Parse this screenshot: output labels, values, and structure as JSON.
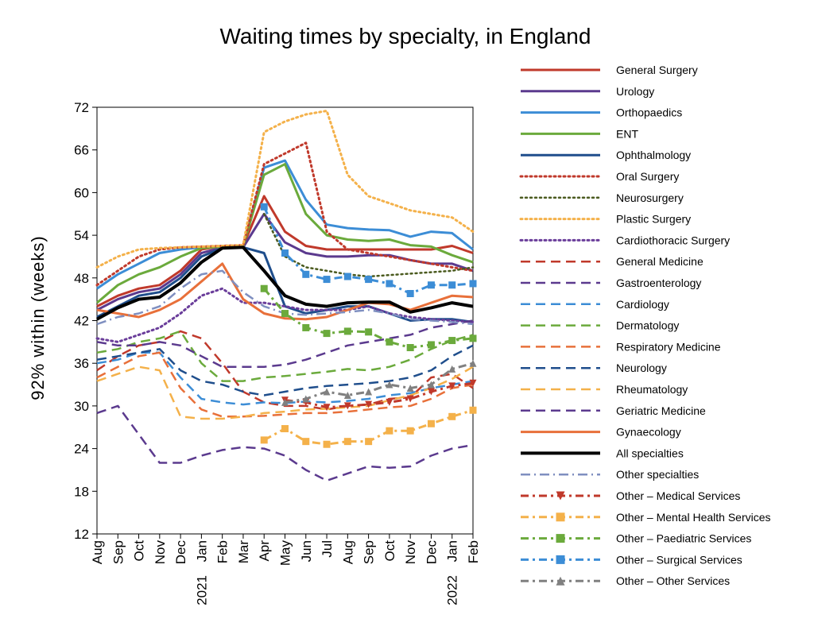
{
  "chart_data": {
    "type": "line",
    "title": "Waiting times by specialty, in England",
    "ylabel": "92% within (weeks)",
    "xlabel": "",
    "ylim": [
      12,
      72
    ],
    "yticks": [
      12,
      18,
      24,
      30,
      36,
      42,
      48,
      54,
      60,
      66,
      72
    ],
    "categories": [
      "Aug",
      "Sep",
      "Oct",
      "Nov",
      "Dec",
      "Jan",
      "Feb",
      "Mar",
      "Apr",
      "May",
      "Jun",
      "Jul",
      "Aug",
      "Sep",
      "Oct",
      "Nov",
      "Dec",
      "Jan",
      "Feb"
    ],
    "year_labels": [
      {
        "index": 5,
        "label": "2021"
      },
      {
        "index": 17,
        "label": "2022"
      }
    ],
    "legend_position": "right",
    "grid": false,
    "series": [
      {
        "name": "General Surgery",
        "color": "#C0392B",
        "dash": "solid",
        "width": 3,
        "values": [
          44,
          45.5,
          46.5,
          47,
          49,
          52,
          52.5,
          52.5,
          59.5,
          54.5,
          52.5,
          52,
          52,
          52,
          52,
          52,
          52,
          52.5,
          51.5
        ]
      },
      {
        "name": "Urology",
        "color": "#5B3A8E",
        "dash": "solid",
        "width": 3,
        "values": [
          43.5,
          45,
          46,
          46.5,
          48.5,
          51.5,
          52.3,
          52.3,
          57,
          53,
          51.5,
          51,
          51,
          51.2,
          51.2,
          50.5,
          50,
          50,
          49
        ]
      },
      {
        "name": "Orthopaedics",
        "color": "#3C8DD6",
        "dash": "solid",
        "width": 3,
        "values": [
          46.5,
          48.5,
          50,
          51.5,
          52,
          52.3,
          52.4,
          52.5,
          63.5,
          64.5,
          59,
          55.5,
          55,
          54.8,
          54.7,
          53.8,
          54.5,
          54.3,
          52
        ]
      },
      {
        "name": "ENT",
        "color": "#6BAA3C",
        "dash": "solid",
        "width": 3,
        "values": [
          44.5,
          47,
          48.5,
          49.5,
          51,
          52.2,
          52.4,
          52.5,
          62.5,
          64,
          57,
          54,
          53.4,
          53.2,
          53.4,
          52.6,
          52.4,
          51.2,
          50.2
        ]
      },
      {
        "name": "Ophthalmology",
        "color": "#1F4E8C",
        "dash": "solid",
        "width": 3,
        "values": [
          42.5,
          44,
          45.5,
          46,
          48,
          51,
          52.2,
          52.3,
          51.5,
          44,
          43,
          43.5,
          44,
          44,
          43,
          42,
          42.2,
          42.2,
          41.8
        ]
      },
      {
        "name": "Oral Surgery",
        "color": "#C0392B",
        "dash": "dot",
        "width": 3,
        "values": [
          47,
          49,
          51,
          52,
          52.3,
          52.4,
          52.5,
          52.6,
          64,
          65.5,
          67,
          54.5,
          52,
          51.5,
          51,
          50.5,
          50,
          49.5,
          49
        ]
      },
      {
        "name": "Neurosurgery",
        "color": "#4A5A1E",
        "dash": "dot",
        "width": 2.5,
        "values": [
          null,
          null,
          null,
          null,
          null,
          null,
          null,
          null,
          57,
          51,
          49.5,
          49,
          48.5,
          48.2,
          48.4,
          48.6,
          48.8,
          49,
          49.5
        ]
      },
      {
        "name": "Plastic Surgery",
        "color": "#F4B14A",
        "dash": "dot",
        "width": 3,
        "values": [
          49.5,
          51,
          52,
          52.2,
          52.3,
          52.4,
          52.5,
          52.6,
          68.5,
          70,
          71,
          71.5,
          62.5,
          59.5,
          58.5,
          57.5,
          57,
          56.5,
          54.5
        ]
      },
      {
        "name": "Cardiothoracic Surgery",
        "color": "#6A3D9A",
        "dash": "dot",
        "width": 3,
        "values": [
          39.5,
          39,
          40,
          41,
          43,
          45.5,
          46.5,
          44.5,
          44.5,
          44,
          43.5,
          43.5,
          43.5,
          44,
          43,
          42.5,
          42.2,
          42,
          41.8
        ]
      },
      {
        "name": "General Medicine",
        "color": "#C0392B",
        "dash": "dash",
        "width": 2.5,
        "values": [
          35,
          37,
          38.5,
          39,
          40.5,
          39.5,
          36,
          32,
          30.5,
          30,
          30,
          29.5,
          30,
          30.2,
          31,
          31.2,
          34,
          34.5,
          32.5
        ]
      },
      {
        "name": "Gastroenterology",
        "color": "#5B3A8E",
        "dash": "dash",
        "width": 2.5,
        "values": [
          29,
          30,
          26,
          22,
          22,
          23,
          23.8,
          24.2,
          24,
          23,
          21,
          19.5,
          20.5,
          21.5,
          21.3,
          21.5,
          23,
          24,
          24.5
        ]
      },
      {
        "name": "Cardiology",
        "color": "#3C8DD6",
        "dash": "dash",
        "width": 2.5,
        "values": [
          36,
          36.5,
          37.5,
          37.5,
          34,
          31,
          30.5,
          30.2,
          30.5,
          30.4,
          30.6,
          30.5,
          30.7,
          31,
          31.5,
          31.8,
          32.5,
          33,
          33.5
        ]
      },
      {
        "name": "Dermatology",
        "color": "#6BAA3C",
        "dash": "dash",
        "width": 2.5,
        "values": [
          37.5,
          38,
          39,
          39.5,
          40.5,
          36,
          33.5,
          33.5,
          34,
          34.2,
          34.5,
          34.8,
          35.2,
          35,
          35.5,
          36.5,
          38,
          39.2,
          40
        ]
      },
      {
        "name": "Respiratory Medicine",
        "color": "#E8703A",
        "dash": "dash",
        "width": 2.5,
        "values": [
          34,
          35.5,
          37,
          37.5,
          32.5,
          29.5,
          28.5,
          28.5,
          28.6,
          28.8,
          29,
          29,
          29.2,
          29.5,
          29.8,
          30,
          31,
          32.5,
          33
        ]
      },
      {
        "name": "Neurology",
        "color": "#1F4E8C",
        "dash": "dash",
        "width": 2.5,
        "values": [
          36.5,
          37,
          37.5,
          38,
          35,
          33.5,
          33,
          32,
          31.5,
          32,
          32.5,
          32.8,
          33,
          33.2,
          33.5,
          34,
          35,
          37,
          38.5
        ]
      },
      {
        "name": "Rheumatology",
        "color": "#F4B14A",
        "dash": "dash",
        "width": 2.5,
        "values": [
          33.5,
          34.5,
          35.5,
          35,
          28.5,
          28.2,
          28.2,
          28.5,
          29,
          29.2,
          29.5,
          29.6,
          29.8,
          30,
          30.8,
          31.5,
          32.5,
          33.8,
          35.5
        ]
      },
      {
        "name": "Geriatric Medicine",
        "color": "#5B3A8E",
        "dash": "dash",
        "width": 2.5,
        "values": [
          39,
          38.5,
          38.5,
          39,
          38.5,
          37,
          35.5,
          35.5,
          35.5,
          35.8,
          36.5,
          37.5,
          38.5,
          39,
          39.5,
          40,
          41,
          41.5,
          42
        ]
      },
      {
        "name": "Gynaecology",
        "color": "#E8703A",
        "dash": "solid",
        "width": 3,
        "values": [
          43.5,
          43,
          42.5,
          43.5,
          45,
          47.5,
          50,
          45,
          43,
          42.3,
          42.2,
          42.5,
          43.5,
          44.5,
          44.3,
          43.5,
          44.5,
          45.5,
          45.3
        ]
      },
      {
        "name": "All specialties",
        "color": "#000000",
        "dash": "solid",
        "width": 4,
        "values": [
          42.2,
          43.8,
          45,
          45.3,
          47.3,
          50.2,
          52.2,
          52.3,
          49,
          45.5,
          44.3,
          44,
          44.5,
          44.6,
          44.6,
          43.2,
          43.8,
          44.5,
          44
        ]
      },
      {
        "name": "Other specialties",
        "color": "#7F8FC0",
        "dash": "dashdot",
        "width": 2.5,
        "values": [
          41.5,
          42.5,
          43,
          44,
          46.5,
          48.5,
          49,
          46,
          44,
          43,
          42.8,
          43,
          43.2,
          43.5,
          43,
          42.2,
          42,
          41.8,
          41.5
        ]
      },
      {
        "name": "Other – Medical Services",
        "color": "#C0392B",
        "dash": "dashdotbold",
        "width": 3,
        "marker": "triangle-down",
        "values": [
          null,
          null,
          null,
          null,
          null,
          null,
          null,
          null,
          null,
          30.8,
          30.5,
          29.8,
          30,
          30.2,
          30.5,
          31,
          32,
          32.8,
          33.2
        ]
      },
      {
        "name": "Other – Mental Health Services",
        "color": "#F4B14A",
        "dash": "dashdotbold",
        "width": 3,
        "marker": "square",
        "values": [
          null,
          null,
          null,
          null,
          null,
          null,
          null,
          null,
          25.2,
          26.8,
          25,
          24.6,
          25,
          25,
          26.5,
          26.5,
          27.5,
          28.5,
          29.4
        ]
      },
      {
        "name": "Other – Paediatric Services",
        "color": "#6BAA3C",
        "dash": "dashdotbold",
        "width": 3,
        "marker": "square",
        "values": [
          null,
          null,
          null,
          null,
          null,
          null,
          null,
          null,
          46.5,
          43,
          41,
          40.2,
          40.5,
          40.4,
          39,
          38.2,
          38.6,
          39.2,
          39.5
        ]
      },
      {
        "name": "Other – Surgical Services",
        "color": "#3C8DD6",
        "dash": "dashdotbold",
        "width": 3,
        "marker": "square",
        "values": [
          null,
          null,
          null,
          null,
          null,
          null,
          null,
          null,
          58,
          51.5,
          48.5,
          47.8,
          48.2,
          47.8,
          47.2,
          45.8,
          47,
          47,
          47.2
        ]
      },
      {
        "name": "Other – Other Services",
        "color": "#808080",
        "dash": "dashdotbold",
        "width": 3,
        "marker": "triangle-up",
        "values": [
          null,
          null,
          null,
          null,
          null,
          null,
          null,
          null,
          null,
          30.5,
          31,
          32,
          31.5,
          32,
          33,
          32.5,
          33,
          35.2,
          36
        ]
      }
    ]
  }
}
